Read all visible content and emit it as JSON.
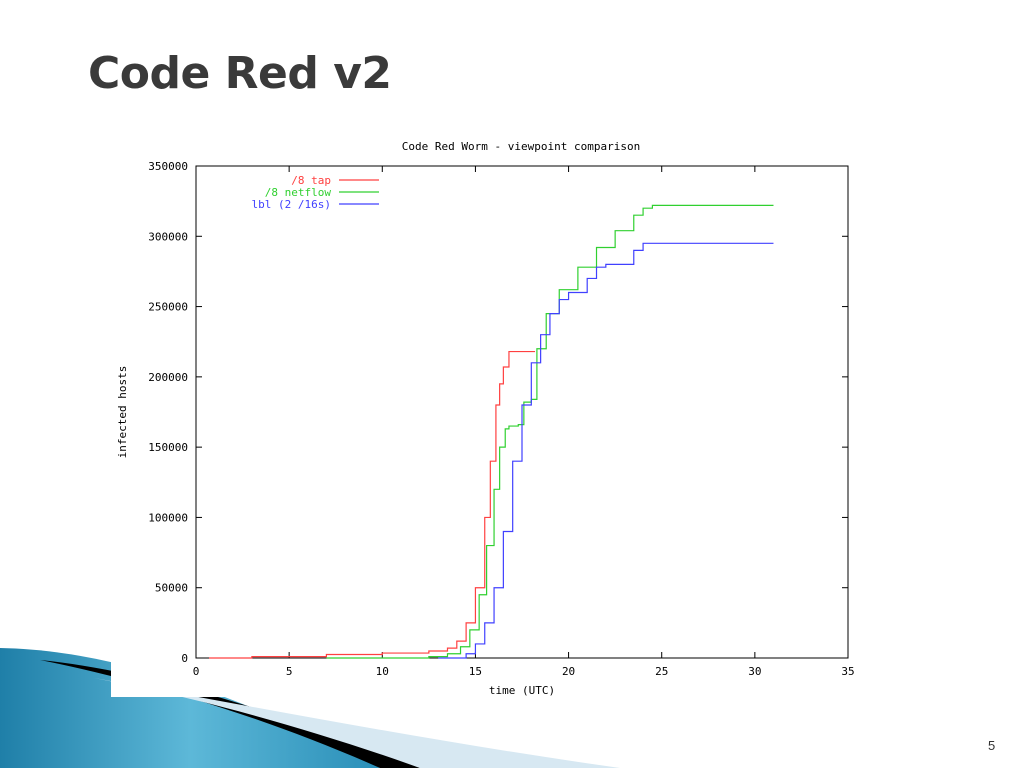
{
  "slide": {
    "title": "Code Red v2",
    "page_number": "5"
  },
  "colors": {
    "title_text": "#3a3a3a",
    "deco_blue_dark": "#1f7fa8",
    "deco_blue_light": "#5db8d8",
    "deco_black": "#000000",
    "deco_pale": "#d7e8f2"
  },
  "chart_data": {
    "type": "line",
    "title": "Code Red Worm - viewpoint comparison",
    "xlabel": "time (UTC)",
    "ylabel": "infected hosts",
    "xlim": [
      0,
      35
    ],
    "ylim": [
      0,
      350000
    ],
    "xticks": [
      0,
      5,
      10,
      15,
      20,
      25,
      30,
      35
    ],
    "yticks": [
      0,
      50000,
      100000,
      150000,
      200000,
      250000,
      300000,
      350000
    ],
    "legend_position": "top-left",
    "grid": false,
    "series": [
      {
        "name": "/8 tap",
        "color": "#ff4040",
        "points": [
          [
            0.7,
            0
          ],
          [
            3,
            1000
          ],
          [
            7,
            2500
          ],
          [
            10,
            3500
          ],
          [
            12.5,
            5000
          ],
          [
            13.5,
            7000
          ],
          [
            14,
            12000
          ],
          [
            14.5,
            25000
          ],
          [
            15,
            50000
          ],
          [
            15.5,
            100000
          ],
          [
            15.8,
            140000
          ],
          [
            16.1,
            180000
          ],
          [
            16.3,
            195000
          ],
          [
            16.5,
            207000
          ],
          [
            16.8,
            208000
          ],
          [
            16.8,
            218000
          ],
          [
            18.2,
            218000
          ]
        ]
      },
      {
        "name": "/8 netflow",
        "color": "#30d030",
        "points": [
          [
            7,
            0
          ],
          [
            12.5,
            1000
          ],
          [
            13.5,
            3000
          ],
          [
            14.2,
            8000
          ],
          [
            14.7,
            20000
          ],
          [
            15.2,
            45000
          ],
          [
            15.6,
            80000
          ],
          [
            16,
            120000
          ],
          [
            16.3,
            150000
          ],
          [
            16.6,
            163000
          ],
          [
            16.8,
            165000
          ],
          [
            17.3,
            166000
          ],
          [
            17.6,
            182000
          ],
          [
            18,
            184000
          ],
          [
            18.3,
            220000
          ],
          [
            18.8,
            245000
          ],
          [
            19.5,
            262000
          ],
          [
            20.5,
            278000
          ],
          [
            21.5,
            292000
          ],
          [
            22.5,
            304000
          ],
          [
            23.5,
            315000
          ],
          [
            24,
            320000
          ],
          [
            24.5,
            322000
          ],
          [
            31,
            322000
          ]
        ]
      },
      {
        "name": "lbl (2 /16s)",
        "color": "#4040ff",
        "points": [
          [
            13,
            0
          ],
          [
            14.5,
            3000
          ],
          [
            15,
            10000
          ],
          [
            15.5,
            25000
          ],
          [
            16,
            50000
          ],
          [
            16.5,
            90000
          ],
          [
            17,
            140000
          ],
          [
            17.5,
            180000
          ],
          [
            18,
            210000
          ],
          [
            18.5,
            230000
          ],
          [
            19,
            245000
          ],
          [
            19.5,
            255000
          ],
          [
            20,
            260000
          ],
          [
            21,
            270000
          ],
          [
            21.5,
            278000
          ],
          [
            22,
            280000
          ],
          [
            22.7,
            280000
          ],
          [
            23.5,
            290000
          ],
          [
            24,
            295000
          ],
          [
            31,
            295000
          ]
        ]
      }
    ]
  }
}
